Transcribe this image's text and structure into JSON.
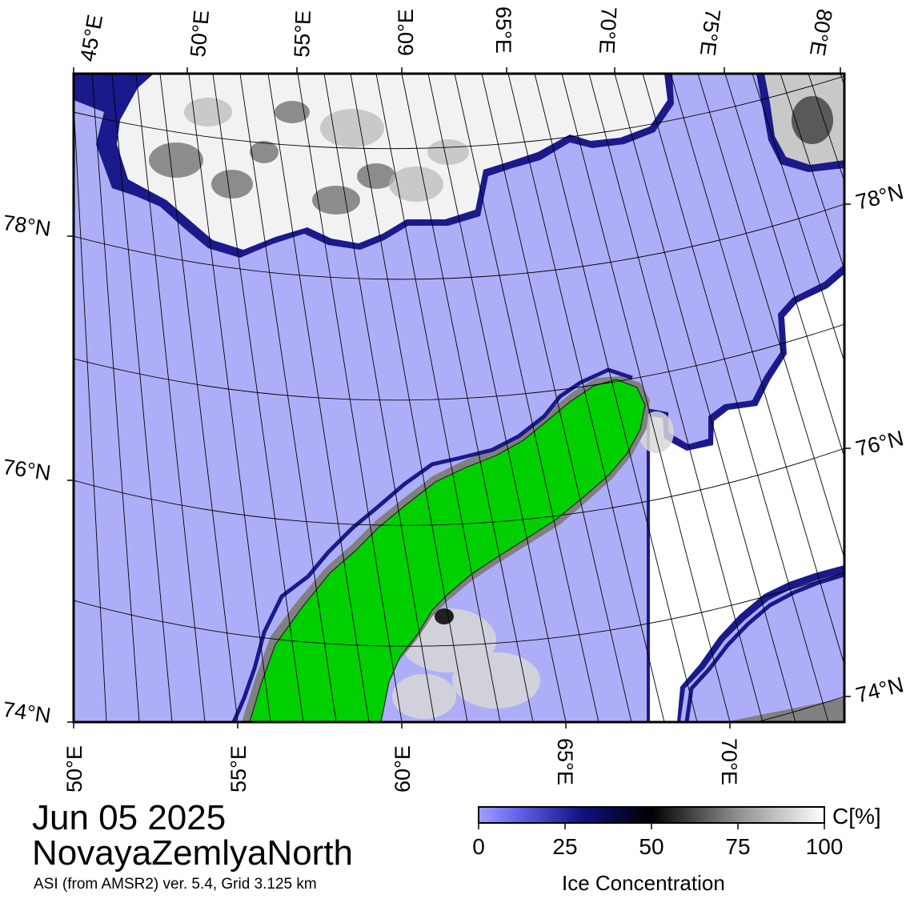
{
  "map": {
    "top_lon_labels": [
      "45°E",
      "50°E",
      "55°E",
      "60°E",
      "65°E",
      "70°E",
      "75°E",
      "80°E"
    ],
    "bottom_lon_labels": [
      "50°E",
      "55°E",
      "60°E",
      "65°E",
      "70°E"
    ],
    "left_lat_labels": [
      "78°N",
      "76°N",
      "74°N"
    ],
    "right_lat_labels": [
      "78°N",
      "76°N",
      "74°N"
    ],
    "colors": {
      "open_water": "#aeaef8",
      "ice_edge": "#1a1a8c",
      "land": "#00d000",
      "ice_white": "#ffffff",
      "ice_grey": "#d0d0d0",
      "no_data": "#808080"
    }
  },
  "title": {
    "date": "Jun 05 2025",
    "region": "NovayaZemlyaNorth",
    "product": "ASI (from AMSR2) ver. 5.4,  Grid 3.125 km"
  },
  "colorbar": {
    "unit": "C[%]",
    "title": "Ice Concentration",
    "ticks": [
      "0",
      "25",
      "50",
      "75",
      "100"
    ]
  }
}
